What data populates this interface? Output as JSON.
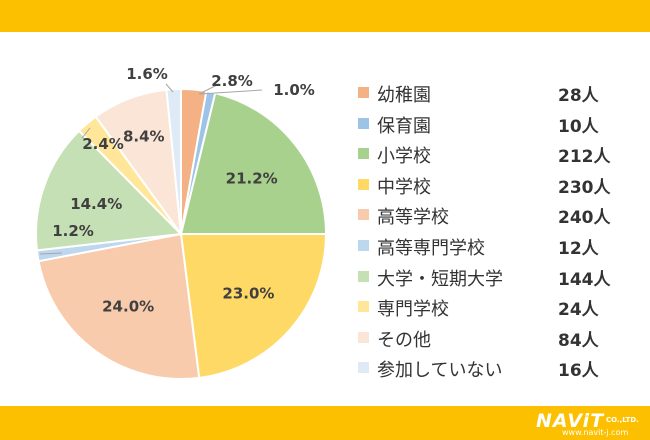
{
  "chart_data": {
    "type": "pie",
    "title": "",
    "legend_position": "right",
    "categories": [
      "幼稚園",
      "保育園",
      "小学校",
      "中学校",
      "高等学校",
      "高等専門学校",
      "大学・短期大学",
      "専門学校",
      "その他",
      "参加していない"
    ],
    "values": [
      2.8,
      1.0,
      21.2,
      23.0,
      24.0,
      1.2,
      14.4,
      2.4,
      8.4,
      1.6
    ],
    "percent_labels": [
      "2.8%",
      "1.0%",
      "21.2%",
      "23.0%",
      "24.0%",
      "1.2%",
      "14.4%",
      "2.4%",
      "8.4%",
      "1.6%"
    ],
    "counts": [
      "28人",
      "10人",
      "212人",
      "230人",
      "240人",
      "12人",
      "144人",
      "24人",
      "84人",
      "16人"
    ],
    "colors": [
      "#F4B183",
      "#9DC3E6",
      "#A9D18E",
      "#FFD966",
      "#F8CBAD",
      "#BDD7EE",
      "#C5E0B4",
      "#FFE699",
      "#FBE5D6",
      "#DEEBF7"
    ]
  },
  "logo": {
    "brand": "NAViT",
    "suffix": "CO.,LTD.",
    "url": "www.navit-j.com"
  },
  "colors": {
    "band": "#FCC000"
  }
}
